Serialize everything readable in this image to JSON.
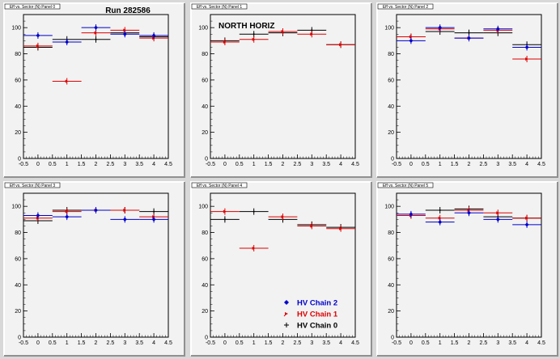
{
  "run_label": "Run 282586",
  "region_label": "NORTH HORIZ",
  "panel_titles": [
    "Eff vs. Sector (N) Panel 0",
    "Eff vs. Sector (N) Panel 1",
    "Eff vs. Sector (N) Panel 2",
    "Eff vs. Sector (N) Panel 3",
    "Eff vs. Sector (N) Panel 4",
    "Eff vs. Sector (N) Panel 5"
  ],
  "legend": [
    {
      "label": "HV Chain 2",
      "color": "#0000cc",
      "marker": "diamond"
    },
    {
      "label": "HV Chain 1",
      "color": "#dd0000",
      "marker": "arrow"
    },
    {
      "label": "HV Chain 0",
      "color": "#000000",
      "marker": "cross"
    }
  ],
  "chart_data": [
    {
      "type": "scatter",
      "title": "Run 282586",
      "xlim": [
        -0.5,
        4.5
      ],
      "ylim": [
        0,
        110
      ],
      "xticks": [
        "-0.5",
        "0",
        "0.5",
        "1",
        "1.5",
        "2",
        "2.5",
        "3",
        "3.5",
        "4",
        "4.5"
      ],
      "yticks": [
        "0",
        "20",
        "40",
        "60",
        "80",
        "100"
      ],
      "series": [
        {
          "name": "HV Chain 0",
          "color": "#000000",
          "x": [
            0,
            1,
            2,
            3,
            4
          ],
          "y": [
            85,
            91,
            91,
            96,
            93
          ]
        },
        {
          "name": "HV Chain 1",
          "color": "#dd0000",
          "x": [
            0,
            1,
            2,
            3,
            4
          ],
          "y": [
            86,
            59,
            96,
            98,
            92
          ]
        },
        {
          "name": "HV Chain 2",
          "color": "#0000cc",
          "x": [
            0,
            1,
            2,
            3,
            4
          ],
          "y": [
            94,
            89,
            100,
            95,
            94
          ]
        }
      ]
    },
    {
      "type": "scatter",
      "title": "NORTH HORIZ",
      "xlim": [
        -0.5,
        4.5
      ],
      "ylim": [
        0,
        110
      ],
      "xticks": [
        "-0.5",
        "0",
        "0.5",
        "1",
        "1.5",
        "2",
        "2.5",
        "3",
        "3.5",
        "4",
        "4.5"
      ],
      "yticks": [
        "0",
        "20",
        "40",
        "60",
        "80",
        "100"
      ],
      "series": [
        {
          "name": "HV Chain 0",
          "color": "#000000",
          "x": [
            0,
            1,
            2,
            3,
            4
          ],
          "y": [
            90,
            95,
            96,
            98,
            87
          ]
        },
        {
          "name": "HV Chain 1",
          "color": "#dd0000",
          "x": [
            0,
            1,
            2,
            3,
            4
          ],
          "y": [
            89,
            91,
            97,
            95,
            87
          ]
        }
      ]
    },
    {
      "type": "scatter",
      "xlim": [
        -0.5,
        4.5
      ],
      "ylim": [
        0,
        110
      ],
      "xticks": [
        "-0.5",
        "0",
        "0.5",
        "1",
        "1.5",
        "2",
        "2.5",
        "3",
        "3.5",
        "4",
        "4.5"
      ],
      "yticks": [
        "0",
        "20",
        "40",
        "60",
        "80",
        "100"
      ],
      "series": [
        {
          "name": "HV Chain 0",
          "color": "#000000",
          "x": [
            0,
            1,
            2,
            3,
            4
          ],
          "y": [
            93,
            97,
            96,
            96,
            87
          ]
        },
        {
          "name": "HV Chain 1",
          "color": "#dd0000",
          "x": [
            0,
            1,
            2,
            3,
            4
          ],
          "y": [
            93,
            99,
            92,
            98,
            76
          ]
        },
        {
          "name": "HV Chain 2",
          "color": "#0000cc",
          "x": [
            0,
            1,
            2,
            3,
            4
          ],
          "y": [
            90,
            100,
            92,
            99,
            85
          ]
        }
      ]
    },
    {
      "type": "scatter",
      "xlim": [
        -0.5,
        4.5
      ],
      "ylim": [
        0,
        110
      ],
      "xticks": [
        "-0.5",
        "0",
        "0.5",
        "1",
        "1.5",
        "2",
        "2.5",
        "3",
        "3.5",
        "4",
        "4.5"
      ],
      "yticks": [
        "0",
        "20",
        "40",
        "60",
        "80",
        "100"
      ],
      "series": [
        {
          "name": "HV Chain 0",
          "color": "#000000",
          "x": [
            0,
            1,
            2,
            3,
            4
          ],
          "y": [
            89,
            97,
            97,
            97,
            96
          ]
        },
        {
          "name": "HV Chain 1",
          "color": "#dd0000",
          "x": [
            0,
            1,
            2,
            3,
            4
          ],
          "y": [
            91,
            96,
            97,
            97,
            92
          ]
        },
        {
          "name": "HV Chain 2",
          "color": "#0000cc",
          "x": [
            0,
            1,
            2,
            3,
            4
          ],
          "y": [
            93,
            92,
            97,
            90,
            90
          ]
        }
      ]
    },
    {
      "type": "scatter",
      "xlim": [
        -0.5,
        4.5
      ],
      "ylim": [
        0,
        110
      ],
      "xticks": [
        "-0.5",
        "0",
        "0.5",
        "1",
        "1.5",
        "2",
        "2.5",
        "3",
        "3.5",
        "4",
        "4.5"
      ],
      "yticks": [
        "0",
        "20",
        "40",
        "60",
        "80",
        "100"
      ],
      "series": [
        {
          "name": "HV Chain 0",
          "color": "#000000",
          "x": [
            0,
            1,
            2,
            3,
            4
          ],
          "y": [
            90,
            96,
            90,
            86,
            84
          ]
        },
        {
          "name": "HV Chain 1",
          "color": "#dd0000",
          "x": [
            0,
            1,
            2,
            3,
            4
          ],
          "y": [
            96,
            68,
            92,
            85,
            83
          ]
        }
      ]
    },
    {
      "type": "scatter",
      "xlim": [
        -0.5,
        4.5
      ],
      "ylim": [
        0,
        110
      ],
      "xticks": [
        "-0.5",
        "0",
        "0.5",
        "1",
        "1.5",
        "2",
        "2.5",
        "3",
        "3.5",
        "4",
        "4.5"
      ],
      "yticks": [
        "0",
        "20",
        "40",
        "60",
        "80",
        "100"
      ],
      "series": [
        {
          "name": "HV Chain 0",
          "color": "#000000",
          "x": [
            0,
            1,
            2,
            3,
            4
          ],
          "y": [
            93,
            97,
            98,
            92,
            91
          ]
        },
        {
          "name": "HV Chain 1",
          "color": "#dd0000",
          "x": [
            0,
            1,
            2,
            3,
            4
          ],
          "y": [
            93,
            91,
            97,
            95,
            91
          ]
        },
        {
          "name": "HV Chain 2",
          "color": "#0000cc",
          "x": [
            0,
            1,
            2,
            3,
            4
          ],
          "y": [
            94,
            88,
            95,
            90,
            86
          ]
        }
      ]
    }
  ]
}
